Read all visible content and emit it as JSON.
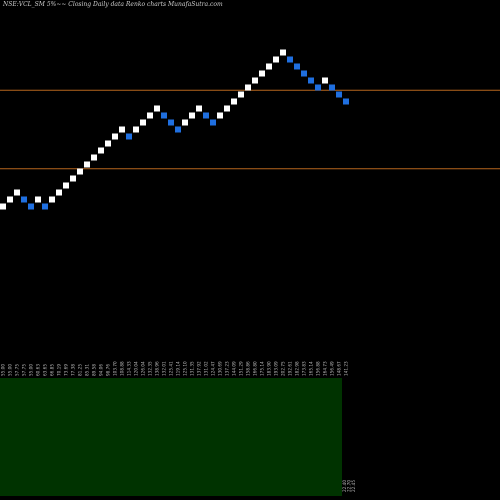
{
  "header": {
    "title": "NSE:VCL_SM 5%~~ Closing Daily data  Renko  charts MunafaSutra.com"
  },
  "colors": {
    "background": "#000000",
    "up_brick": "#ffffff",
    "down_brick": "#1f6fe0",
    "level_line": "#b5651d",
    "volume_panel": "#003300"
  },
  "chart_data": {
    "type": "renko",
    "brick_pct": 5,
    "directions": [
      1,
      1,
      1,
      -1,
      -1,
      1,
      -1,
      1,
      1,
      1,
      1,
      1,
      1,
      1,
      1,
      1,
      1,
      1,
      -1,
      1,
      1,
      1,
      1,
      -1,
      -1,
      -1,
      1,
      1,
      1,
      -1,
      -1,
      1,
      1,
      1,
      1,
      1,
      1,
      1,
      1,
      1,
      1,
      -1,
      -1,
      -1,
      -1,
      -1,
      1,
      -1,
      -1,
      -1
    ],
    "level_lines_brick_index": [
      16.6,
      5.4
    ],
    "x_tick_labels": [
      "55.00",
      "55.00",
      "57.75",
      "57.75",
      "55.00",
      "60.63",
      "63.65",
      "66.85",
      "70.19",
      "73.69",
      "77.38",
      "81.25",
      "85.31",
      "89.58",
      "94.06",
      "98.76",
      "103.70",
      "108.88",
      "114.33",
      "120.04",
      "126.04",
      "132.35",
      "138.96",
      "132.01",
      "125.41",
      "119.14",
      "125.10",
      "131.35",
      "137.92",
      "131.02",
      "124.47",
      "130.69",
      "137.23",
      "144.09",
      "151.29",
      "158.86",
      "166.80",
      "175.14",
      "183.90",
      "193.09",
      "202.75",
      "192.61",
      "182.98",
      "173.83",
      "165.14",
      "156.88",
      "164.73",
      "156.49",
      "148.67",
      "141.23"
    ],
    "volume_labels": [
      "22.40",
      "22.70",
      "22.45"
    ],
    "volume_fill": 1.0
  }
}
